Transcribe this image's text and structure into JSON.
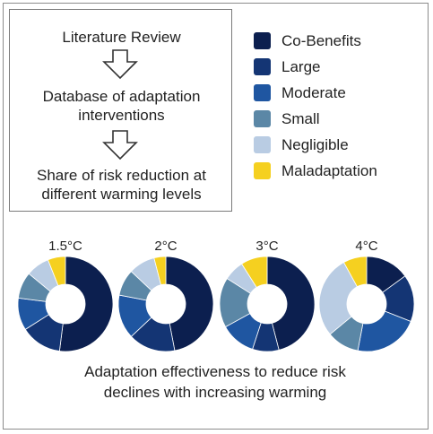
{
  "process": {
    "step1": "Literature Review",
    "step2_line1": "Database of adaptation",
    "step2_line2": "interventions",
    "step3_line1": "Share of risk reduction at",
    "step3_line2": "different warming levels"
  },
  "legend": [
    {
      "label": "Co-Benefits",
      "color": "#0c1f4f"
    },
    {
      "label": "Large",
      "color": "#143574"
    },
    {
      "label": "Moderate",
      "color": "#1f56a1"
    },
    {
      "label": "Small",
      "color": "#5b87a6"
    },
    {
      "label": "Negligible",
      "color": "#b9cce3"
    },
    {
      "label": "Maladaptation",
      "color": "#f5d020"
    }
  ],
  "chart_data": {
    "type": "pie",
    "style": "donut",
    "categories": [
      "Co-Benefits",
      "Large",
      "Moderate",
      "Small",
      "Negligible",
      "Maladaptation"
    ],
    "charts": [
      {
        "title": "1.5°C",
        "values": [
          52,
          14,
          11,
          9,
          8,
          6
        ]
      },
      {
        "title": "2°C",
        "values": [
          47,
          16,
          15,
          9,
          9,
          4
        ]
      },
      {
        "title": "3°C",
        "values": [
          46,
          9,
          12,
          17,
          7,
          9
        ]
      },
      {
        "title": "4°C",
        "values": [
          15,
          16,
          22,
          11,
          28,
          8
        ]
      }
    ]
  },
  "caption": {
    "line1": "Adaptation effectiveness to reduce risk",
    "line2": "declines with increasing warming"
  }
}
